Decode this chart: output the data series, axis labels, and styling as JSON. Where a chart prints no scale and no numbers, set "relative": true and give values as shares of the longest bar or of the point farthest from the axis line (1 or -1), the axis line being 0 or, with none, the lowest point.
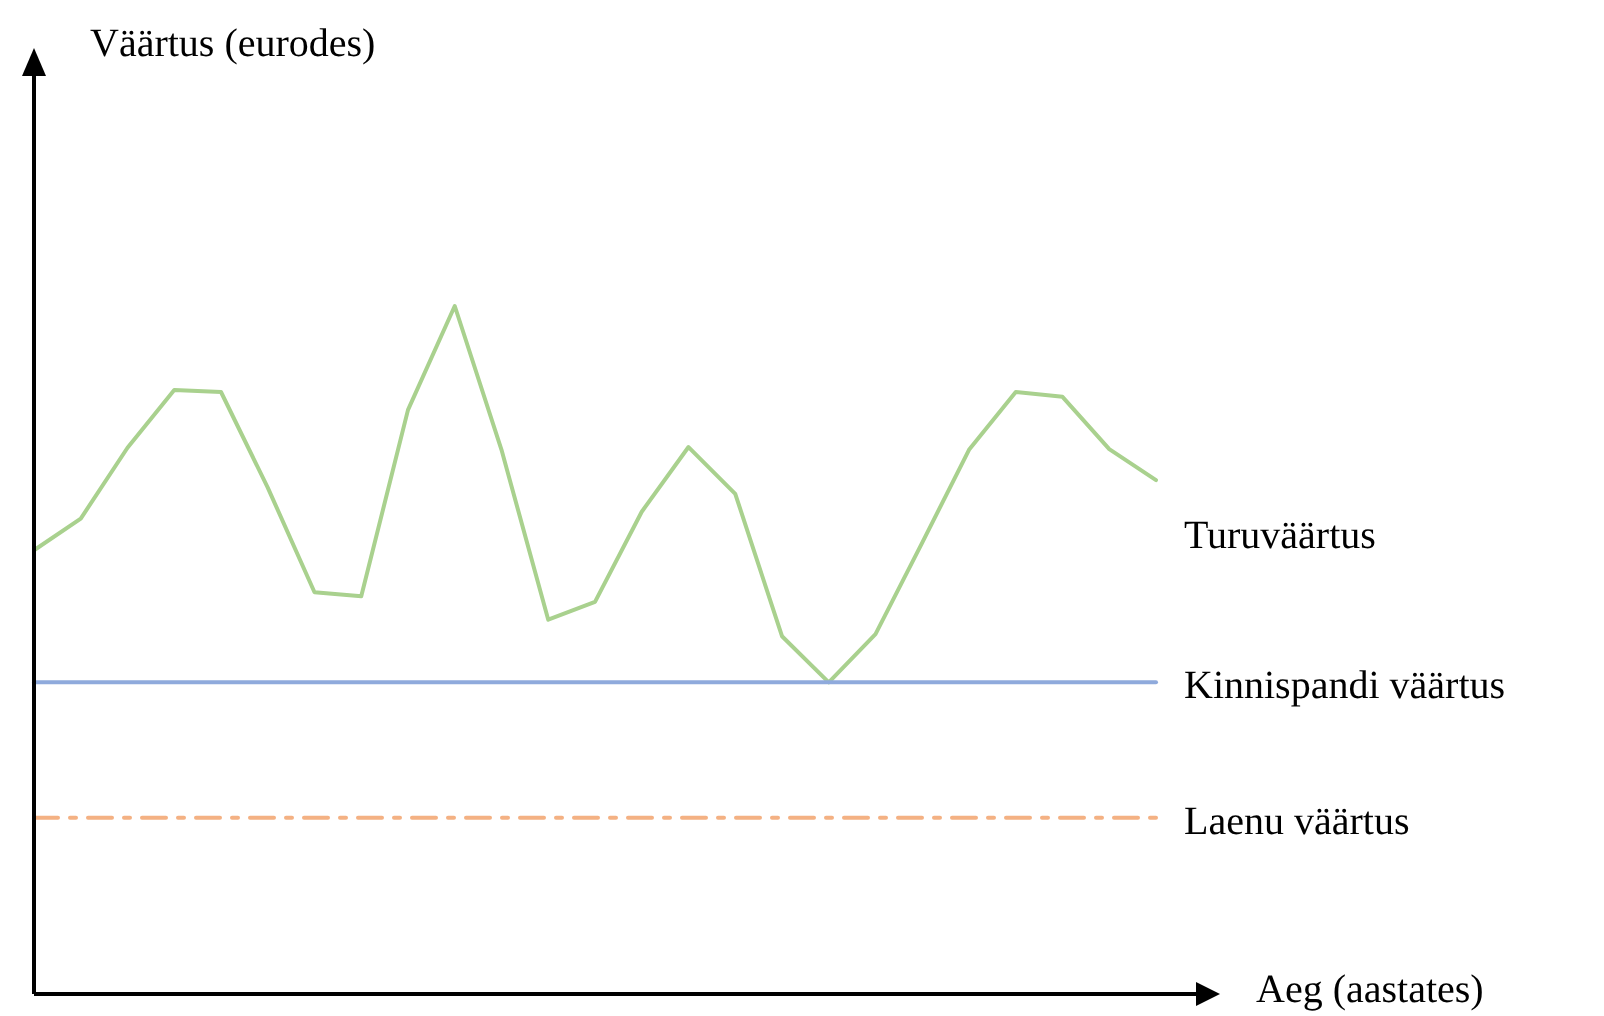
{
  "chart_data": {
    "type": "line",
    "relative": true,
    "xlabel": "Aeg (aastates)",
    "annotations": [
      "Väärtus (eurodes)"
    ],
    "categories": [
      null,
      null,
      null,
      null,
      null,
      null,
      null,
      null,
      null,
      null,
      null,
      null,
      null,
      null,
      null,
      null,
      null,
      null,
      null,
      null,
      null,
      null,
      null,
      null,
      null
    ],
    "series": [
      {
        "name": "Turuväärtus",
        "color": "#a9d18e",
        "line_style": "solid",
        "values": [
          0.645,
          0.691,
          0.794,
          0.878,
          0.875,
          0.736,
          0.584,
          0.578,
          0.849,
          1,
          0.791,
          0.544,
          0.57,
          0.701,
          0.795,
          0.727,
          0.52,
          0.453,
          0.523,
          0.656,
          0.791,
          0.875,
          0.868,
          0.792,
          0.747
        ]
      },
      {
        "name": "Kinnispandi väärtus",
        "color": "#8faadc",
        "line_style": "solid",
        "values": [
          0.453,
          0.453,
          0.453,
          0.453,
          0.453,
          0.453,
          0.453,
          0.453,
          0.453,
          0.453,
          0.453,
          0.453,
          0.453,
          0.453,
          0.453,
          0.453,
          0.453,
          0.453,
          0.453,
          0.453,
          0.453,
          0.453,
          0.453,
          0.453,
          0.453
        ]
      },
      {
        "name": "Laenu väärtus",
        "color": "#f4b183",
        "line_style": "dashed",
        "values": [
          0.256,
          0.256,
          0.256,
          0.256,
          0.256,
          0.256,
          0.256,
          0.256,
          0.256,
          0.256,
          0.256,
          0.256,
          0.256,
          0.256,
          0.256,
          0.256,
          0.256,
          0.256,
          0.256,
          0.256,
          0.256,
          0.256,
          0.256,
          0.256,
          0.256
        ]
      }
    ]
  }
}
